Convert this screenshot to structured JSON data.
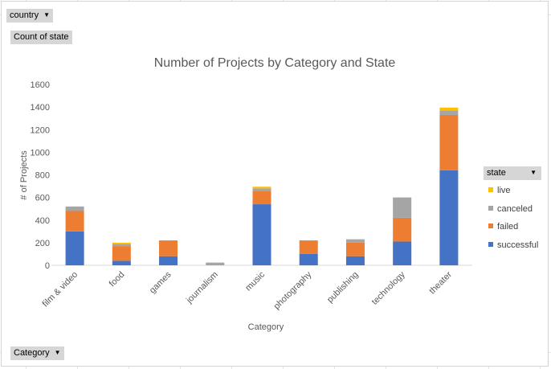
{
  "filters": {
    "country_label": "country",
    "values_label": "Count of state",
    "category_label": "Category",
    "legend_field_label": "state"
  },
  "chart_data": {
    "type": "bar",
    "stacked": true,
    "title": "Number of Projects by Category and State",
    "xlabel": "Category",
    "ylabel": "# of Projects",
    "ylim": [
      0,
      1600
    ],
    "yticks": [
      0,
      200,
      400,
      600,
      800,
      1000,
      1200,
      1400,
      1600
    ],
    "grid": false,
    "legend_position": "right",
    "categories": [
      "film & video",
      "food",
      "games",
      "journalism",
      "music",
      "photography",
      "publishing",
      "technology",
      "theater"
    ],
    "series": [
      {
        "name": "successful",
        "color": "#4472c4",
        "values": [
          300,
          40,
          80,
          0,
          540,
          100,
          80,
          210,
          840
        ]
      },
      {
        "name": "failed",
        "color": "#ed7d31",
        "values": [
          180,
          130,
          140,
          0,
          120,
          120,
          120,
          210,
          490
        ]
      },
      {
        "name": "canceled",
        "color": "#a5a5a5",
        "values": [
          40,
          20,
          0,
          24,
          20,
          0,
          30,
          180,
          40
        ]
      },
      {
        "name": "live",
        "color": "#ffc000",
        "values": [
          0,
          10,
          0,
          0,
          15,
          0,
          0,
          0,
          25
        ]
      }
    ]
  }
}
